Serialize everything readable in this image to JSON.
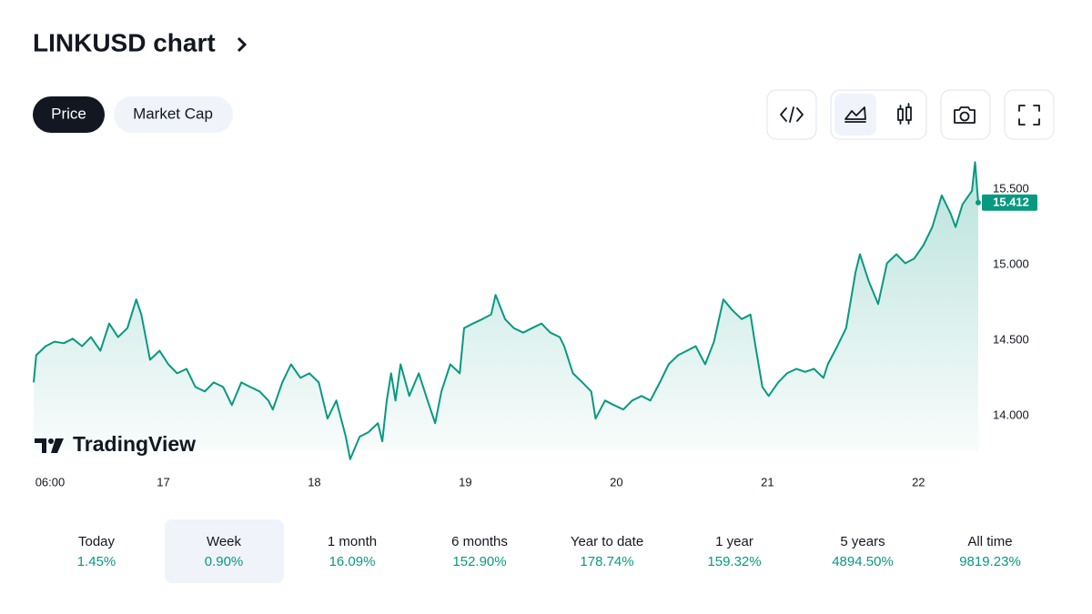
{
  "header": {
    "title": "LINKUSD chart"
  },
  "tabs": [
    "Price",
    "Market Cap"
  ],
  "watermark": "TradingView",
  "chart_data": {
    "type": "area",
    "color": "#089981",
    "x": [
      3.4,
      3.8,
      5.3,
      6.7,
      8.2,
      9.6,
      11.1,
      12.5,
      14.0,
      15.4,
      16.8,
      18.3,
      19.7,
      20.5,
      21.2,
      21.9,
      23.4,
      24.8,
      26.2,
      27.7,
      29.1,
      30.6,
      32.0,
      33.5,
      34.9,
      36.4,
      37.8,
      39.3,
      40.7,
      41.4,
      42.9,
      44.3,
      45.8,
      47.2,
      48.7,
      50.1,
      51.5,
      53.0,
      53.7,
      55.2,
      56.6,
      58.1,
      58.8,
      59.5,
      60.2,
      60.9,
      61.7,
      63.1,
      64.6,
      66.0,
      67.2,
      68.2,
      69.6,
      71.1,
      71.8,
      73.2,
      74.7,
      76.1,
      76.8,
      78.3,
      79.7,
      81.2,
      82.6,
      84.1,
      85.5,
      87.0,
      87.7,
      89.1,
      90.6,
      92.0,
      92.7,
      94.2,
      95.6,
      97.1,
      98.5,
      100.0,
      101.4,
      102.9,
      104.3,
      105.8,
      107.2,
      108.6,
      110.1,
      111.5,
      113.0,
      114.4,
      115.9,
      117.3,
      118.1,
      119.2,
      120.2,
      121.7,
      123.1,
      124.6,
      126.0,
      127.4,
      128.9,
      129.6,
      131.1,
      132.5,
      134.0,
      134.7,
      136.1,
      137.6,
      139.0,
      140.5,
      141.9,
      143.3,
      144.8,
      146.2,
      147.7,
      149.1,
      149.9,
      151.0,
      152.5,
      153.0,
      153.5
    ],
    "values": [
      14.22,
      14.4,
      14.46,
      14.49,
      14.48,
      14.51,
      14.46,
      14.52,
      14.43,
      14.61,
      14.52,
      14.58,
      14.77,
      14.67,
      14.52,
      14.37,
      14.43,
      14.34,
      14.28,
      14.31,
      14.19,
      14.16,
      14.22,
      14.19,
      14.07,
      14.22,
      14.19,
      14.16,
      14.1,
      14.04,
      14.22,
      14.34,
      14.25,
      14.28,
      14.22,
      13.98,
      14.1,
      13.86,
      13.71,
      13.86,
      13.89,
      13.95,
      13.83,
      14.1,
      14.28,
      14.1,
      14.34,
      14.13,
      14.28,
      14.1,
      13.95,
      14.16,
      14.34,
      14.28,
      14.58,
      14.61,
      14.64,
      14.67,
      14.8,
      14.64,
      14.58,
      14.55,
      14.58,
      14.61,
      14.55,
      14.52,
      14.46,
      14.28,
      14.22,
      14.16,
      13.98,
      14.1,
      14.07,
      14.04,
      14.1,
      14.13,
      14.1,
      14.22,
      14.34,
      14.4,
      14.43,
      14.46,
      14.34,
      14.49,
      14.77,
      14.7,
      14.64,
      14.67,
      14.46,
      14.19,
      14.13,
      14.22,
      14.28,
      14.31,
      14.29,
      14.31,
      14.25,
      14.34,
      14.46,
      14.58,
      14.95,
      15.07,
      14.89,
      14.74,
      15.01,
      15.07,
      15.01,
      15.04,
      15.13,
      15.25,
      15.46,
      15.34,
      15.25,
      15.4,
      15.49,
      15.68,
      15.41
    ],
    "last_value": 15.412,
    "xlim": [
      3.4,
      153.5
    ],
    "xticks": [
      {
        "value": 6,
        "label": "06:00"
      },
      {
        "value": 24,
        "label": "17"
      },
      {
        "value": 48,
        "label": "18"
      },
      {
        "value": 72,
        "label": "19"
      },
      {
        "value": 96,
        "label": "20"
      },
      {
        "value": 120,
        "label": "21"
      },
      {
        "value": 144,
        "label": "22"
      }
    ],
    "ylim": [
      13.77,
      15.7
    ],
    "yticks": [
      {
        "value": 14,
        "label": "14.000"
      },
      {
        "value": 14.5,
        "label": "14.500"
      },
      {
        "value": 15,
        "label": "15.000"
      },
      {
        "value": 15.5,
        "label": "15.500"
      }
    ],
    "grid": false
  },
  "performance": [
    {
      "label": "Today",
      "change": "1.45%"
    },
    {
      "label": "Week",
      "change": "0.90%"
    },
    {
      "label": "1 month",
      "change": "16.09%"
    },
    {
      "label": "6 months",
      "change": "152.90%"
    },
    {
      "label": "Year to date",
      "change": "178.74%"
    },
    {
      "label": "1 year",
      "change": "159.32%"
    },
    {
      "label": "5 years",
      "change": "4894.50%"
    },
    {
      "label": "All time",
      "change": "9819.23%"
    }
  ]
}
